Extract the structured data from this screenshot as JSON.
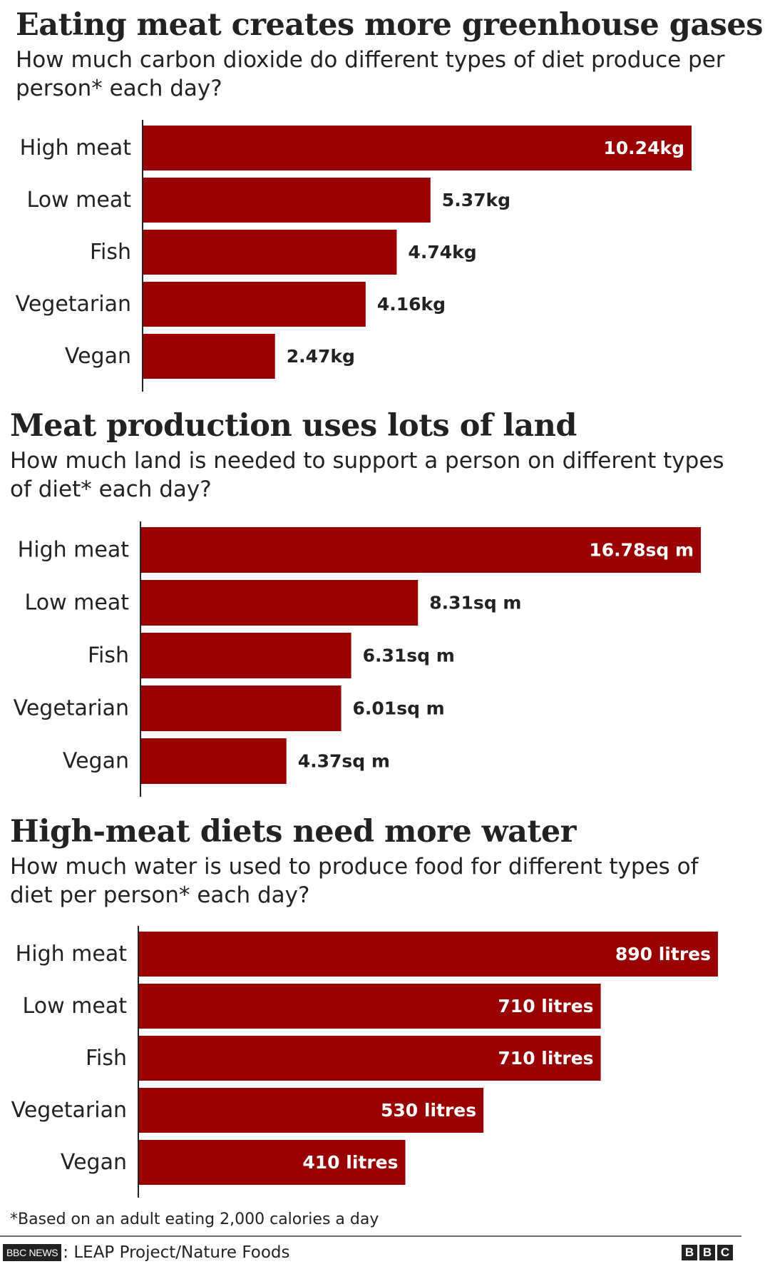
{
  "colors": {
    "bar": "#990000",
    "inside_label": "#ffffff",
    "outside_label": "#222222",
    "axis": "#222222"
  },
  "chart_data": [
    {
      "type": "bar",
      "orientation": "horizontal",
      "title": "Eating meat creates more greenhouse gases",
      "subtitle": "How much carbon dioxide do different types of diet produce per person* each day?",
      "categories": [
        "High meat",
        "Low meat",
        "Fish",
        "Vegetarian",
        "Vegan"
      ],
      "values": [
        10.24,
        5.37,
        4.74,
        4.16,
        2.47
      ],
      "value_labels": [
        "10.24kg",
        "5.37kg",
        "4.74kg",
        "4.16kg",
        "2.47kg"
      ],
      "unit": "kg",
      "xlim": [
        0,
        10.24
      ],
      "grid": false
    },
    {
      "type": "bar",
      "orientation": "horizontal",
      "title": "Meat production uses lots of land",
      "subtitle": "How much land is needed to support a person on different types of diet* each day?",
      "categories": [
        "High meat",
        "Low meat",
        "Fish",
        "Vegetarian",
        "Vegan"
      ],
      "values": [
        16.78,
        8.31,
        6.31,
        6.01,
        4.37
      ],
      "value_labels": [
        "16.78sq m",
        "8.31sq m",
        "6.31sq m",
        "6.01sq m",
        "4.37sq m"
      ],
      "unit": "sq m",
      "xlim": [
        0,
        16.78
      ],
      "grid": false
    },
    {
      "type": "bar",
      "orientation": "horizontal",
      "title": "High-meat diets need more water",
      "subtitle": "How much water is used to produce food for different types of diet per person* each day?",
      "categories": [
        "High meat",
        "Low meat",
        "Fish",
        "Vegetarian",
        "Vegan"
      ],
      "values": [
        890,
        710,
        710,
        530,
        410
      ],
      "value_labels": [
        "890 litres",
        "710 litres",
        "710 litres",
        "530 litres",
        "410 litres"
      ],
      "unit": "litres",
      "xlim": [
        0,
        890
      ],
      "grid": false
    }
  ],
  "footnote": "*Based on an adult eating 2,000 calories a day",
  "source": {
    "badge": "BBC NEWS",
    "text": ": LEAP Project/Nature Foods",
    "logo_letters": [
      "B",
      "B",
      "C"
    ]
  }
}
